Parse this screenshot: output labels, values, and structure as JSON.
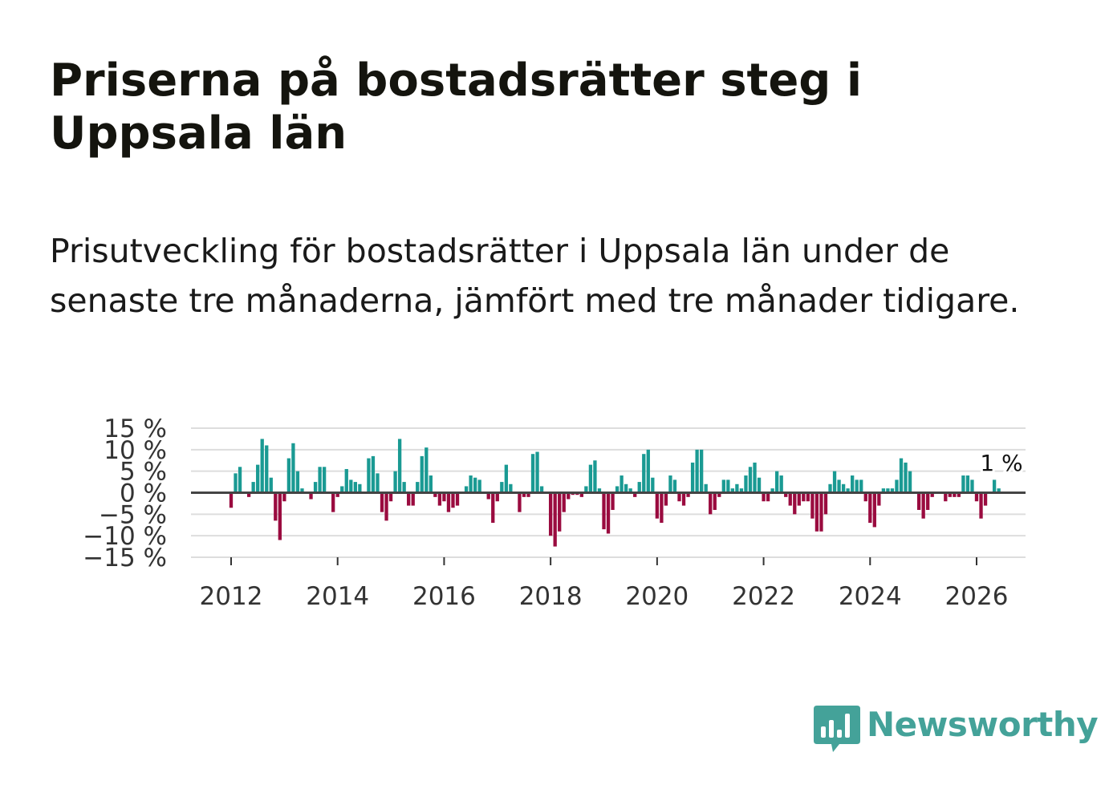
{
  "title": "Priserna på bostadsrätter steg i Uppsala län",
  "subtitle": "Prisutveckling för bostadsrätter i Uppsala län under de senaste tre månaderna, jämfört med tre månader tidigare.",
  "brand": {
    "name": "Newsworthy",
    "icon": "newsworthy-logo-icon",
    "color": "#44a299"
  },
  "colors": {
    "positive": "#1a9a93",
    "negative": "#9a0b3f",
    "grid": "#dddddd",
    "zero": "#444444"
  },
  "chart_data": {
    "type": "bar",
    "title": "",
    "xlabel": "",
    "ylabel": "",
    "ylim": [
      -15,
      15
    ],
    "y_ticks": [
      {
        "value": 15,
        "label": "15 %"
      },
      {
        "value": 10,
        "label": "10 %"
      },
      {
        "value": 5,
        "label": "5 %"
      },
      {
        "value": 0,
        "label": "0 %"
      },
      {
        "value": -5,
        "label": "−5 %"
      },
      {
        "value": -10,
        "label": "−10 %"
      },
      {
        "value": -15,
        "label": "−15 %"
      }
    ],
    "x_ticks": [
      "2012",
      "2014",
      "2016",
      "2018",
      "2020",
      "2022",
      "2024",
      "2026"
    ],
    "x_range": [
      "2011-01",
      "2026-10"
    ],
    "start_month": "2012-01",
    "last_value_label": "1 %",
    "values": [
      -3.5,
      4.5,
      6,
      0,
      -1,
      2.5,
      6.5,
      12.5,
      11,
      3.5,
      -6.5,
      -11,
      -2,
      8,
      11.5,
      5,
      1,
      0,
      -1.5,
      2.5,
      6,
      6,
      0,
      -4.5,
      -1,
      1.5,
      5.5,
      3,
      2.5,
      2,
      0,
      8,
      8.5,
      4.5,
      -4.5,
      -6.5,
      -2,
      5,
      12.5,
      2.5,
      -3,
      -3,
      2.5,
      8.5,
      10.5,
      4,
      -1,
      -3,
      -2,
      -4.5,
      -3.5,
      -3,
      0,
      1.5,
      4,
      3.5,
      3,
      0,
      -1.5,
      -7,
      -2,
      2.5,
      6.5,
      2,
      0,
      -4.5,
      -1,
      -1,
      9,
      9.5,
      1.5,
      0,
      -10,
      -12.5,
      -9,
      -4.5,
      -1.5,
      -0.5,
      -0.5,
      -1,
      1.5,
      6.5,
      7.5,
      1,
      -8.5,
      -9.5,
      -4,
      1.5,
      4,
      2,
      1,
      -1,
      2.5,
      9,
      10,
      3.5,
      -6,
      -7,
      -3,
      4,
      3,
      -2,
      -3,
      -1,
      7,
      10,
      10,
      2,
      -5,
      -4,
      -1,
      3,
      3,
      1,
      2,
      1,
      4,
      6,
      7,
      3.5,
      -2,
      -2,
      1,
      5,
      4,
      -1,
      -3,
      -5,
      -3,
      -2,
      -2,
      -6,
      -9,
      -9,
      -5,
      2,
      5,
      3,
      2,
      1,
      4,
      3,
      3,
      -2,
      -7,
      -8,
      -3,
      1,
      1,
      1,
      3,
      8,
      7,
      5,
      0,
      -4,
      -6,
      -4,
      -1,
      0,
      0,
      -2,
      -1,
      -1,
      -1,
      4,
      4,
      3,
      -2,
      -6,
      -3,
      0,
      3,
      1
    ]
  }
}
